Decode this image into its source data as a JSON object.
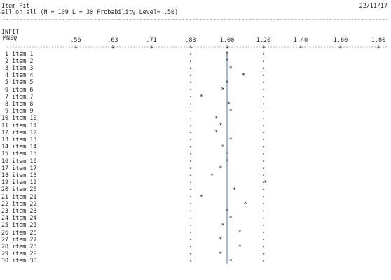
{
  "report": {
    "title": "Item Fit",
    "date": "22/11/17",
    "subtitle": "all on all (N = 109 L = 30 Probability Level= .50)",
    "stat_label_line1": "INFIT",
    "stat_label_line2": "MNSQ"
  },
  "chart_data": {
    "type": "scatter",
    "title": "Item Fit",
    "xlabel": "INFIT MNSQ",
    "x_ticks": [
      ".56",
      ".63",
      ".71",
      ".83",
      "1.00",
      "1.20",
      "1.40",
      "1.60",
      "1.80"
    ],
    "x_tick_values": [
      0.56,
      0.63,
      0.71,
      0.83,
      1.0,
      1.2,
      1.4,
      1.6,
      1.8
    ],
    "lower_limit": 0.83,
    "upper_limit": 1.2,
    "center": 1.0,
    "categories": [
      "1 item 1",
      "2 item 2",
      "3 item 3",
      "4 item 4",
      "5 item 5",
      "6 item 6",
      "7 item 7",
      "8 item 8",
      "9 item 9",
      "10 item 10",
      "11 item 11",
      "12 item 12",
      "13 item 13",
      "14 item 14",
      "15 item 15",
      "16 item 16",
      "17 item 17",
      "18 item 18",
      "19 item 19",
      "20 item 20",
      "21 item 21",
      "22 item 22",
      "23 item 23",
      "24 item 24",
      "25 item 25",
      "26 item 26",
      "27 item 27",
      "28 item 28",
      "29 item 29",
      "30 item 30"
    ],
    "values": [
      1.0,
      1.0,
      1.02,
      1.09,
      1.0,
      0.98,
      0.88,
      1.01,
      1.02,
      0.95,
      0.97,
      0.95,
      1.02,
      0.98,
      1.0,
      1.0,
      0.97,
      0.93,
      1.21,
      1.04,
      0.88,
      1.1,
      1.0,
      1.02,
      0.98,
      1.07,
      0.97,
      1.07,
      0.97,
      1.02
    ],
    "grid": false,
    "legend": "none"
  }
}
